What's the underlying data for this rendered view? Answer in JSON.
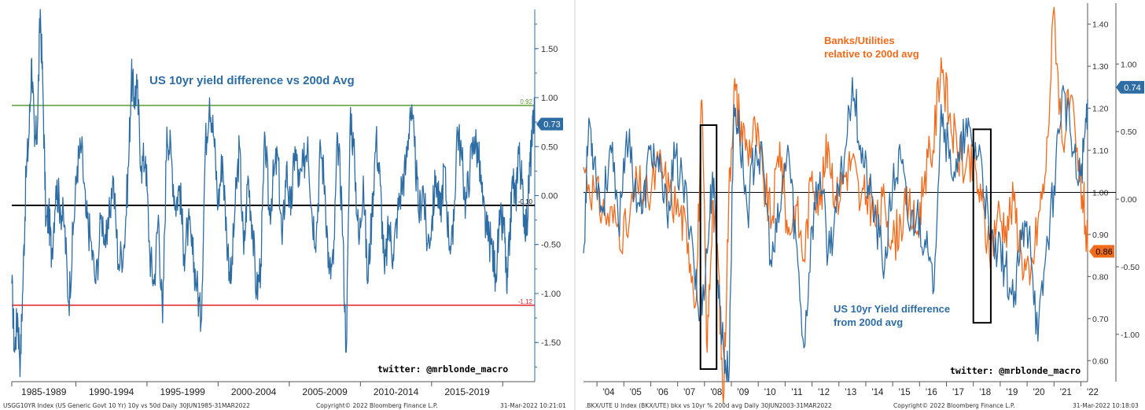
{
  "colors": {
    "blue_series": "#2e6da4",
    "orange_series": "#f26a1b",
    "upper_line": "#5a9e2f",
    "lower_line": "#e02020",
    "zero_line": "#000000",
    "axis": "#2e6da4"
  },
  "left": {
    "title": "US 10yr yield difference vs 200d Avg",
    "handle": "twitter: @mrblonde_macro",
    "footer_left": "USGG10YR Index (US Generic Govt 10 Yr) 10y vs 50d  Daily 30JUN1985-31MAR2022",
    "footer_mid": "Copyright© 2022 Bloomberg Finance L.P.",
    "footer_right": "31-Mar-2022 10:21:01",
    "badge": "0.73",
    "ref_upper_label": "0.92",
    "ref_lower_label": "-1.12",
    "ref_zero_label": "-0.10"
  },
  "right": {
    "title_orange_line1": "Banks/Utilities",
    "title_orange_line2": "relative to 200d avg",
    "title_blue_line1": "US 10yr Yield difference",
    "title_blue_line2": "from 200d avg",
    "handle": "twitter: @mrblonde_macro",
    "footer_left": ".BKX/UTE U Index (BKX/UTE) bkx vs 10yr % 200d avg  Daily 30JUN2003-31MAR2022",
    "footer_mid": "Copyright© 2022 Bloomberg Finance L.P.",
    "footer_right": "31-Mar-2022 10:18:03",
    "badge_blue": "0.74",
    "badge_orange": "0.86"
  },
  "chart_data": [
    {
      "type": "line",
      "title": "US 10yr yield difference vs 200d Avg",
      "xlabel": "",
      "ylabel": "",
      "x_tick_labels": [
        "1985-1989",
        "1990-1994",
        "1995-1999",
        "2000-2004",
        "2005-2009",
        "2010-2014",
        "2015-2019"
      ],
      "y_ticks": [
        "1.50",
        "1.00",
        "0.50",
        "0.00",
        "-0.50",
        "-1.00",
        "-1.50"
      ],
      "ylim": [
        -1.9,
        1.9
      ],
      "xlim": [
        1985.5,
        2022.25
      ],
      "reference_lines": [
        {
          "value": 0.92,
          "label": "0.92",
          "color": "#5a9e2f"
        },
        {
          "value": -0.1,
          "label": "-0.10",
          "color": "#000000"
        },
        {
          "value": -1.12,
          "label": "-1.12",
          "color": "#e02020"
        }
      ],
      "last_value": 0.73,
      "series": [
        {
          "color": "#2e6da4",
          "x": [
            1985.5,
            1985.7,
            1985.9,
            1986.1,
            1986.3,
            1986.5,
            1986.7,
            1986.9,
            1987.1,
            1987.3,
            1987.5,
            1987.7,
            1987.9,
            1988.1,
            1988.3,
            1988.6,
            1988.9,
            1989.2,
            1989.5,
            1989.8,
            1990.1,
            1990.4,
            1990.7,
            1991.0,
            1991.4,
            1991.8,
            1992.2,
            1992.6,
            1993.0,
            1993.4,
            1993.7,
            1993.9,
            1994.1,
            1994.3,
            1994.6,
            1994.9,
            1995.2,
            1995.5,
            1995.8,
            1996.1,
            1996.4,
            1996.7,
            1997.0,
            1997.3,
            1997.6,
            1997.9,
            1998.2,
            1998.5,
            1998.8,
            1999.1,
            1999.4,
            1999.7,
            2000.0,
            2000.3,
            2000.6,
            2000.9,
            2001.2,
            2001.5,
            2001.8,
            2002.1,
            2002.4,
            2002.7,
            2003.0,
            2003.3,
            2003.6,
            2003.9,
            2004.2,
            2004.5,
            2004.8,
            2005.1,
            2005.4,
            2005.7,
            2006.0,
            2006.3,
            2006.6,
            2006.9,
            2007.2,
            2007.5,
            2007.8,
            2008.1,
            2008.4,
            2008.7,
            2009.0,
            2009.3,
            2009.6,
            2009.9,
            2010.2,
            2010.5,
            2010.8,
            2011.1,
            2011.4,
            2011.7,
            2012.0,
            2012.3,
            2012.6,
            2012.9,
            2013.2,
            2013.5,
            2013.8,
            2014.1,
            2014.4,
            2014.7,
            2015.0,
            2015.3,
            2015.6,
            2015.9,
            2016.2,
            2016.5,
            2016.8,
            2017.1,
            2017.4,
            2017.7,
            2018.0,
            2018.3,
            2018.6,
            2018.9,
            2019.2,
            2019.5,
            2019.8,
            2020.1,
            2020.3,
            2020.5,
            2020.7,
            2020.9,
            2021.1,
            2021.3,
            2021.5,
            2021.7,
            2021.9,
            2022.05,
            2022.2,
            2022.25
          ],
          "y": [
            -0.9,
            -1.6,
            -1.2,
            -1.7,
            -0.8,
            0.2,
            0.6,
            1.4,
            0.5,
            0.7,
            1.9,
            1.0,
            -0.3,
            -0.2,
            -0.6,
            0.1,
            -0.1,
            -0.3,
            -1.1,
            -0.4,
            0.3,
            0.5,
            -0.2,
            -0.4,
            -0.9,
            -0.2,
            -0.5,
            0.2,
            -0.7,
            -0.5,
            0.3,
            1.2,
            1.0,
            1.1,
            0.3,
            0.4,
            -0.6,
            -0.9,
            -0.2,
            -1.3,
            0.7,
            0.4,
            -0.1,
            0.1,
            -0.6,
            -0.3,
            -0.6,
            -0.9,
            -1.3,
            0.5,
            1.0,
            0.6,
            -0.1,
            0.4,
            -0.4,
            -0.9,
            -0.1,
            0.5,
            -0.6,
            0.2,
            -0.3,
            -1.0,
            -0.7,
            0.6,
            -0.2,
            0.2,
            0.4,
            -0.5,
            0.3,
            -0.2,
            0.5,
            0.1,
            0.3,
            0.6,
            -0.2,
            -0.4,
            0.5,
            0.1,
            -0.8,
            -0.7,
            0.6,
            -0.1,
            -1.6,
            0.9,
            0.3,
            -0.5,
            0.2,
            -0.9,
            -0.2,
            0.6,
            0.1,
            -0.8,
            -0.3,
            -0.6,
            -0.2,
            0.1,
            0.3,
            0.9,
            0.5,
            -0.2,
            0.1,
            -0.5,
            -0.3,
            0.2,
            -0.2,
            0.3,
            -0.4,
            -0.5,
            0.7,
            0.4,
            -0.1,
            0.3,
            0.6,
            0.4,
            -0.1,
            -0.4,
            -0.5,
            -0.8,
            -0.3,
            -0.3,
            -1.0,
            -0.4,
            0.2,
            -0.1,
            0.5,
            0.2,
            -0.2,
            -0.3,
            0.3,
            0.5,
            0.92,
            0.73
          ]
        }
      ]
    },
    {
      "type": "line",
      "title": "",
      "xlabel": "",
      "x_tick_labels": [
        "'04",
        "'05",
        "'06",
        "'07",
        "'08",
        "'09",
        "'10",
        "'11",
        "'12",
        "'13",
        "'14",
        "'15",
        "'16",
        "'17",
        "'18",
        "'19",
        "'20",
        "'21",
        "'22"
      ],
      "xlim": [
        2003.5,
        2022.25
      ],
      "y_left_ticks": [
        "1.40",
        "1.30",
        "1.20",
        "1.10",
        "1.00",
        "0.90",
        "0.80",
        "0.70",
        "0.60"
      ],
      "y_left_lim": [
        0.55,
        1.45
      ],
      "y_right_ticks": [
        "1.00",
        "0.50",
        "0.00",
        "-0.50",
        "-1.00"
      ],
      "y_right_lim": [
        -1.35,
        1.45
      ],
      "series": [
        {
          "name": "Banks/Utilities relative to 200d avg",
          "axis": "left",
          "color": "#f26a1b",
          "last_value": 0.86,
          "x": [
            2003.5,
            2003.9,
            2004.3,
            2004.7,
            2005.1,
            2005.5,
            2005.9,
            2006.3,
            2006.7,
            2007.1,
            2007.4,
            2007.7,
            2007.9,
            2008.1,
            2008.3,
            2008.5,
            2008.7,
            2008.9,
            2009.1,
            2009.3,
            2009.6,
            2009.9,
            2010.2,
            2010.5,
            2010.8,
            2011.1,
            2011.4,
            2011.7,
            2012.0,
            2012.3,
            2012.6,
            2012.9,
            2013.2,
            2013.5,
            2013.8,
            2014.1,
            2014.4,
            2014.7,
            2015.0,
            2015.3,
            2015.6,
            2015.9,
            2016.2,
            2016.5,
            2016.8,
            2017.1,
            2017.4,
            2017.7,
            2018.0,
            2018.3,
            2018.6,
            2018.9,
            2019.2,
            2019.5,
            2019.8,
            2020.1,
            2020.4,
            2020.7,
            2021.0,
            2021.3,
            2021.6,
            2021.9,
            2022.1,
            2022.25
          ],
          "y": [
            1.06,
            1.0,
            0.95,
            0.93,
            0.9,
            1.02,
            0.98,
            1.07,
            1.0,
            0.95,
            0.88,
            0.75,
            1.22,
            0.62,
            0.98,
            0.85,
            0.5,
            0.98,
            1.25,
            1.18,
            1.1,
            1.15,
            1.02,
            0.93,
            1.12,
            0.9,
            0.97,
            0.84,
            1.05,
            0.97,
            1.12,
            0.98,
            1.04,
            1.08,
            0.97,
            1.0,
            0.92,
            0.98,
            0.88,
            0.93,
            0.97,
            0.9,
            1.05,
            1.1,
            1.32,
            1.18,
            1.1,
            1.05,
            1.06,
            0.98,
            0.85,
            0.95,
            0.92,
            0.98,
            0.85,
            0.78,
            0.93,
            1.05,
            1.44,
            1.12,
            1.22,
            1.05,
            0.98,
            0.86
          ]
        },
        {
          "name": "US 10yr Yield difference from 200d avg",
          "axis": "right",
          "color": "#2e6da4",
          "last_value": 0.74,
          "x": [
            2003.5,
            2003.7,
            2003.9,
            2004.2,
            2004.5,
            2004.8,
            2005.1,
            2005.4,
            2005.7,
            2006.0,
            2006.3,
            2006.6,
            2006.9,
            2007.2,
            2007.5,
            2007.8,
            2008.1,
            2008.3,
            2008.5,
            2008.7,
            2008.9,
            2009.1,
            2009.3,
            2009.6,
            2009.9,
            2010.2,
            2010.5,
            2010.8,
            2011.1,
            2011.4,
            2011.7,
            2012.0,
            2012.3,
            2012.6,
            2012.9,
            2013.2,
            2013.5,
            2013.8,
            2014.1,
            2014.4,
            2014.7,
            2015.0,
            2015.3,
            2015.6,
            2015.9,
            2016.2,
            2016.5,
            2016.8,
            2017.1,
            2017.4,
            2017.7,
            2018.0,
            2018.3,
            2018.6,
            2018.9,
            2019.2,
            2019.5,
            2019.8,
            2020.1,
            2020.4,
            2020.7,
            2021.0,
            2021.3,
            2021.6,
            2021.9,
            2022.1,
            2022.25
          ],
          "y": [
            -0.4,
            0.6,
            0.3,
            -0.1,
            0.4,
            -0.2,
            0.5,
            0.1,
            -0.1,
            0.4,
            0.2,
            -0.1,
            0.3,
            0.1,
            -0.2,
            -0.9,
            -0.4,
            0.2,
            -0.6,
            -1.1,
            -1.35,
            0.7,
            0.5,
            -0.1,
            0.4,
            0.2,
            -0.5,
            -0.1,
            0.4,
            -0.3,
            -1.1,
            -0.2,
            0.2,
            -0.4,
            -0.1,
            0.3,
            0.9,
            0.4,
            0.1,
            -0.2,
            -0.5,
            0.1,
            0.3,
            -0.2,
            -0.1,
            -0.3,
            -0.7,
            0.7,
            0.3,
            0.2,
            0.5,
            0.4,
            0.3,
            -0.3,
            -0.4,
            -0.5,
            -0.8,
            -0.3,
            -0.2,
            -1.05,
            -0.4,
            0.1,
            0.8,
            0.5,
            0.1,
            0.35,
            0.74
          ]
        }
      ],
      "annotations": [
        {
          "type": "box",
          "x_range": [
            2007.85,
            2008.45
          ],
          "y_range": [
            0.58,
            1.16
          ]
        },
        {
          "type": "box",
          "x_range": [
            2018.0,
            2018.65
          ],
          "y_range": [
            0.69,
            1.15
          ]
        }
      ],
      "zero_line": 1.0
    }
  ]
}
